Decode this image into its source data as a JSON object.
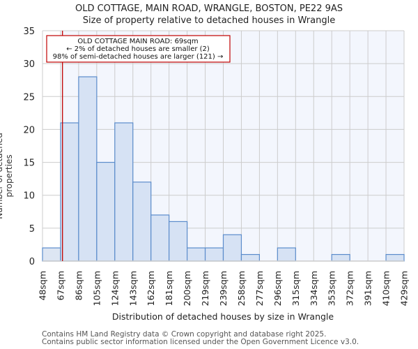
{
  "header": {
    "title": "OLD COTTAGE, MAIN ROAD, WRANGLE, BOSTON, PE22 9AS",
    "subtitle": "Size of property relative to detached houses in Wrangle"
  },
  "annotation": {
    "line1": "OLD COTTAGE MAIN ROAD: 69sqm",
    "line2": "← 2% of detached houses are smaller (2)",
    "line3": "98% of semi-detached houses are larger (121) →",
    "color": "#c00000"
  },
  "footer": {
    "line1": "Contains HM Land Registry data © Crown copyright and database right 2025.",
    "line2": "Contains public sector information licensed under the Open Government Licence v3.0."
  },
  "chart_data": {
    "type": "bar",
    "title": "Size of property relative to detached houses in Wrangle",
    "xlabel": "Distribution of detached houses by size in Wrangle",
    "ylabel": "Number of detached properties",
    "ylim": [
      0,
      35
    ],
    "yticks": [
      0,
      5,
      10,
      15,
      20,
      25,
      30,
      35
    ],
    "categories": [
      "48sqm",
      "67sqm",
      "86sqm",
      "105sqm",
      "124sqm",
      "143sqm",
      "162sqm",
      "181sqm",
      "200sqm",
      "219sqm",
      "239sqm",
      "258sqm",
      "277sqm",
      "296sqm",
      "315sqm",
      "334sqm",
      "353sqm",
      "372sqm",
      "391sqm",
      "410sqm",
      "429sqm"
    ],
    "bin_edges": [
      48,
      67,
      86,
      105,
      124,
      143,
      162,
      181,
      200,
      219,
      239,
      258,
      277,
      296,
      315,
      334,
      353,
      372,
      391,
      410,
      429
    ],
    "values": [
      2,
      21,
      28,
      15,
      21,
      12,
      7,
      6,
      2,
      2,
      4,
      1,
      0,
      2,
      0,
      0,
      1,
      0,
      0,
      1
    ],
    "marker": {
      "value": 69,
      "label": "OLD COTTAGE MAIN ROAD: 69sqm"
    },
    "grid": true,
    "bar_fill": "#d6e2f4",
    "bar_edge": "#5b8ccb",
    "highlight_background": "#f3f6fd"
  }
}
